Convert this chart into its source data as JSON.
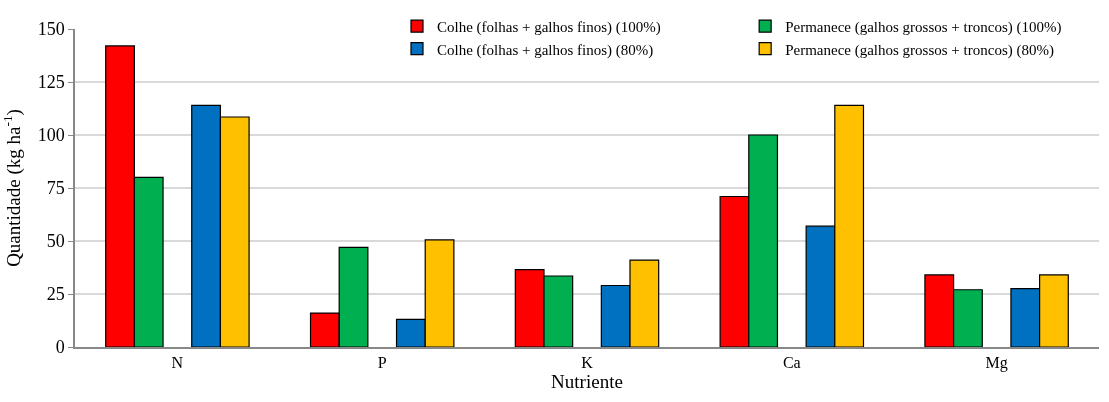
{
  "chart_data": {
    "type": "bar",
    "xlabel": "Nutriente",
    "ylabel": "Quantidade (kg ha$^{-1}$)",
    "categories": [
      "N",
      "P",
      "K",
      "Ca",
      "Mg"
    ],
    "series": [
      {
        "name": "Colhe (folhas + galhos finos) (100%)",
        "color": "#ff0000",
        "values": [
          142,
          16,
          36.5,
          71,
          34
        ]
      },
      {
        "name": "Permanece (galhos grossos + troncos) (100%)",
        "color": "#00b050",
        "values": [
          80,
          47,
          33.5,
          100,
          27
        ]
      },
      {
        "name": "Colhe (folhas + galhos finos) (80%)",
        "color": "#0070c0",
        "values": [
          114,
          13,
          29,
          57,
          27.5
        ]
      },
      {
        "name": "Permanece (galhos grossos + troncos) (80%)",
        "color": "#ffc000",
        "values": [
          108.5,
          50.5,
          41,
          114,
          34
        ]
      }
    ],
    "ylim": [
      0,
      150
    ],
    "yticks": [
      0,
      25,
      50,
      75,
      100,
      125,
      150
    ],
    "grid": "y",
    "legend": "top right"
  }
}
